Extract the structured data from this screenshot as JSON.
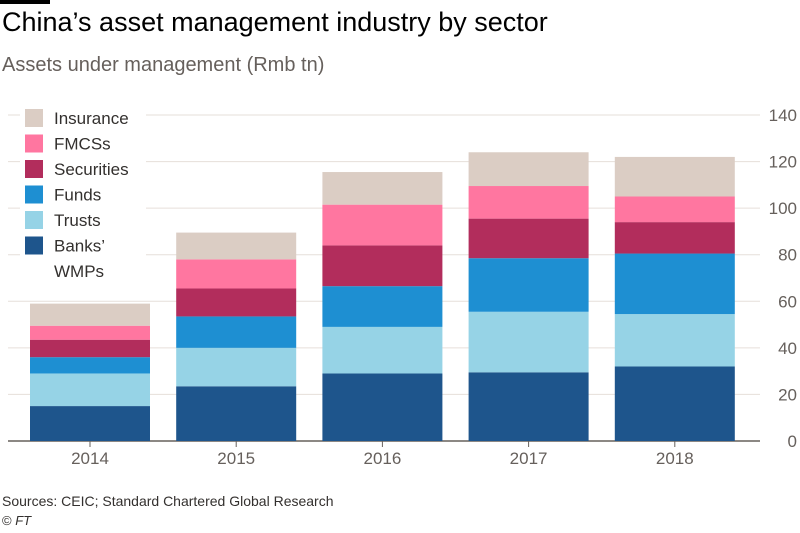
{
  "chart_data": {
    "type": "bar",
    "stacked": true,
    "title": "China’s asset management industry by sector",
    "subtitle": "Assets under management (Rmb tn)",
    "categories": [
      "2014",
      "2015",
      "2016",
      "2017",
      "2018"
    ],
    "series": [
      {
        "name": "Banks’ WMPs",
        "color": "#1e558c",
        "values": [
          15,
          23.5,
          29,
          29.5,
          32
        ]
      },
      {
        "name": "Trusts",
        "color": "#96d3e6",
        "values": [
          14,
          16.5,
          20,
          26,
          22.5
        ]
      },
      {
        "name": "Funds",
        "color": "#1e8fd2",
        "values": [
          7,
          13.5,
          17.5,
          23,
          26
        ]
      },
      {
        "name": "Securities",
        "color": "#b22d5c",
        "values": [
          7.5,
          12,
          17.5,
          17,
          13.5
        ]
      },
      {
        "name": "FMCSs",
        "color": "#ff76a0",
        "values": [
          6,
          12.5,
          17.5,
          14,
          11
        ]
      },
      {
        "name": "Insurance",
        "color": "#dbcdc4",
        "values": [
          9.5,
          11.5,
          14,
          14.5,
          17
        ]
      }
    ],
    "y_axis": {
      "min": 0,
      "max": 140,
      "ticks": [
        0,
        20,
        40,
        60,
        80,
        100,
        120,
        140
      ],
      "position": "right"
    },
    "grid": true,
    "legend": {
      "position": "top-left",
      "order": [
        "Insurance",
        "FMCSs",
        "Securities",
        "Funds",
        "Trusts",
        "Banks’ WMPs"
      ]
    },
    "source": "Sources: CEIC; Standard Chartered Global Research",
    "copyright": {
      "symbol": "©",
      "brand": "FT"
    }
  }
}
